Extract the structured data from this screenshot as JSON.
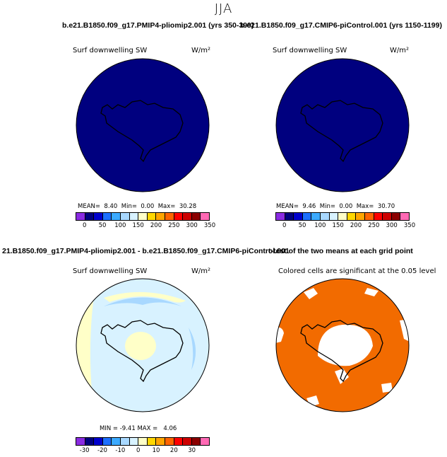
{
  "main_title": "JJA",
  "top_left": {
    "header": "b.e21.B1850.f09_g17.PMIP4-pliomip2.001 (yrs 350-399)",
    "variable": "Surf downwelling SW",
    "units": "W/m²",
    "stats": {
      "mean_label": "MEAN=",
      "mean": "8.40",
      "min_label": "Min=",
      "min": "0.00",
      "max_label": "Max=",
      "max": "30.28"
    },
    "colorbar_ticks": [
      "0",
      "50",
      "100",
      "150",
      "200",
      "250",
      "300",
      "350"
    ]
  },
  "top_right": {
    "header": "b.e21.B1850.f09_g17.CMIP6-piControl.001 (yrs 1150-1199)",
    "variable": "Surf downwelling SW",
    "units": "W/m²",
    "stats": {
      "mean_label": "MEAN=",
      "mean": "9.46",
      "min_label": "Min=",
      "min": "0.00",
      "max_label": "Max=",
      "max": "30.70"
    },
    "colorbar_ticks": [
      "0",
      "50",
      "100",
      "150",
      "200",
      "250",
      "300",
      "350"
    ]
  },
  "bottom_left": {
    "header": "21.B1850.f09_g17.PMIP4-pliomip2.001 - b.e21.B1850.f09_g17.CMIP6-piControl.001",
    "variable": "Surf downwelling SW",
    "units": "W/m²",
    "stats": {
      "min_label": "MIN =",
      "min": "-9.41",
      "max_label": "MAX =",
      "max": "4.06"
    },
    "colorbar_ticks": [
      "-30",
      "-20",
      "-10",
      "0",
      "10",
      "20",
      "30"
    ]
  },
  "bottom_right": {
    "header": "t-test of the two means at each grid point",
    "note": "Colored cells are significant at the 0.05 level"
  },
  "colors": {
    "ocean_map": "#00007f",
    "sig_orange": "#f26b00",
    "colorbar_abs": [
      "#8a2be2",
      "#00007f",
      "#0000cd",
      "#1c6fff",
      "#3caaff",
      "#a8d8ff",
      "#d8f2ff",
      "#ffffc8",
      "#ffd700",
      "#ffa500",
      "#ff6400",
      "#ff0000",
      "#cd0000",
      "#8b0000",
      "#ff69b4"
    ],
    "colorbar_diff": [
      "#8a2be2",
      "#00007f",
      "#0000cd",
      "#1c6fff",
      "#3caaff",
      "#a8d8ff",
      "#d8f2ff",
      "#ffffc8",
      "#ffd700",
      "#ffa500",
      "#ff6400",
      "#ff0000",
      "#cd0000",
      "#8b0000",
      "#ff69b4"
    ]
  }
}
